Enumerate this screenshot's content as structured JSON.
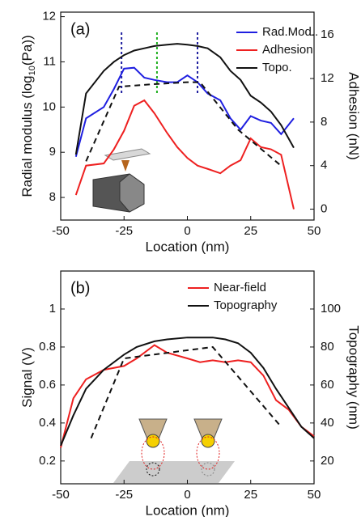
{
  "chart_data": [
    {
      "type": "line",
      "panel_label": "(a)",
      "xlabel": "Location (nm)",
      "ylabel_parts": [
        "Radial modulus (log",
        "10",
        "(Pa))"
      ],
      "y2label": "Adhesion (nN)",
      "xlim": [
        -50,
        50
      ],
      "xticks": [
        -50,
        -25,
        0,
        25,
        50
      ],
      "ylim": [
        7.5,
        12.1
      ],
      "yticks": [
        8,
        9,
        10,
        11,
        12
      ],
      "y2lim": [
        -1,
        18.1
      ],
      "y2ticks": [
        0,
        4,
        8,
        12,
        16
      ],
      "x": [
        -44,
        -40,
        -33,
        -29,
        -25,
        -21,
        -17,
        -13,
        -8,
        -4,
        0,
        4,
        8,
        13,
        17,
        21,
        25,
        29,
        33,
        37,
        42
      ],
      "series": [
        {
          "name": "Rad.Mod..",
          "color": "#1f1fe0",
          "values": [
            8.9,
            9.75,
            10.0,
            10.4,
            10.85,
            10.87,
            10.65,
            10.6,
            10.55,
            10.55,
            10.7,
            10.55,
            10.3,
            10.15,
            9.75,
            9.5,
            9.8,
            9.7,
            9.65,
            9.4,
            9.75
          ]
        },
        {
          "name": "Adhesion",
          "color": "#ee2020",
          "axis": "y2",
          "values": [
            1.3,
            4.0,
            4.2,
            5.5,
            7.2,
            9.5,
            10.0,
            8.8,
            7.0,
            5.7,
            4.7,
            4.0,
            3.7,
            3.3,
            4.0,
            4.5,
            6.5,
            5.7,
            5.5,
            5.0,
            0
          ]
        },
        {
          "name": "Topo.",
          "color": "#111111",
          "values": [
            8.95,
            10.3,
            10.8,
            11.0,
            11.15,
            11.25,
            11.3,
            11.35,
            11.38,
            11.4,
            11.38,
            11.35,
            11.3,
            11.1,
            10.8,
            10.6,
            10.25,
            10.1,
            9.9,
            9.6,
            9.1
          ]
        },
        {
          "color": "#111111",
          "dashed": true,
          "x": [
            -40,
            -27,
            -15,
            0,
            5,
            20,
            37
          ],
          "values": [
            8.8,
            10.45,
            10.5,
            10.55,
            10.55,
            9.5,
            8.7
          ]
        }
      ],
      "vlines": [
        {
          "x": -26,
          "color": "#2020a0"
        },
        {
          "x": -12,
          "color": "#20b020"
        },
        {
          "x": 4,
          "color": "#2020a0"
        }
      ]
    },
    {
      "type": "line",
      "panel_label": "(b)",
      "xlabel": "Location (nm)",
      "ylabel_parts": [
        "Signal (V)"
      ],
      "y2label": "Topography (nm)",
      "xlim": [
        -50,
        50
      ],
      "xticks": [
        -50,
        -25,
        0,
        25,
        50
      ],
      "ylim": [
        0.08,
        1.2
      ],
      "yticks": [
        0.2,
        0.4,
        0.6,
        0.8,
        1
      ],
      "y2lim": [
        8,
        120
      ],
      "y2ticks": [
        20,
        40,
        60,
        80,
        100
      ],
      "x": [
        -50,
        -45,
        -40,
        -33,
        -25,
        -20,
        -13,
        -8,
        0,
        5,
        10,
        15,
        20,
        25,
        30,
        35,
        40,
        45,
        50
      ],
      "series": [
        {
          "name": "Near-field",
          "color": "#ee2020",
          "values": [
            0.27,
            0.53,
            0.63,
            0.68,
            0.7,
            0.74,
            0.81,
            0.77,
            0.74,
            0.72,
            0.73,
            0.72,
            0.73,
            0.72,
            0.65,
            0.52,
            0.47,
            0.38,
            0.33
          ]
        },
        {
          "name": "Topography",
          "color": "#111111",
          "axis": "y2",
          "values": [
            28,
            44,
            58,
            68,
            76,
            80,
            83,
            84,
            85,
            85,
            85,
            84,
            82,
            77,
            69,
            58,
            48,
            38,
            32
          ]
        },
        {
          "color": "#111111",
          "dashed": true,
          "axis": "y2",
          "x": [
            -38,
            -25,
            10,
            37
          ],
          "values": [
            32,
            74,
            80,
            38
          ]
        }
      ]
    }
  ]
}
